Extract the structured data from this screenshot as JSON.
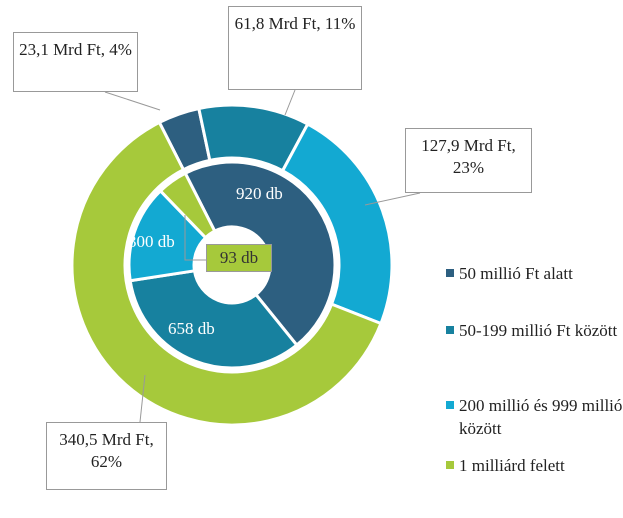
{
  "chart_data": {
    "type": "donut",
    "categories": [
      "50 millió Ft alatt",
      "50-199 millió Ft között",
      "200 millió és 999 millió között",
      "1 milliárd felett"
    ],
    "colors": [
      "#2d5f80",
      "#17819f",
      "#13a9d2",
      "#a6c93b"
    ],
    "series": [
      {
        "values": [
          23.1,
          61.8,
          127.9,
          340.5
        ],
        "value_labels": [
          "23,1 Mrd Ft, 4%",
          "61,8 Mrd Ft, 11%",
          "127,9 Mrd Ft, 23%",
          "340,5 Mrd Ft, 62%"
        ]
      },
      {
        "values": [
          920,
          658,
          300,
          93
        ],
        "value_labels": [
          "920 db",
          "658 db",
          "300 db",
          "93 db"
        ]
      }
    ]
  }
}
